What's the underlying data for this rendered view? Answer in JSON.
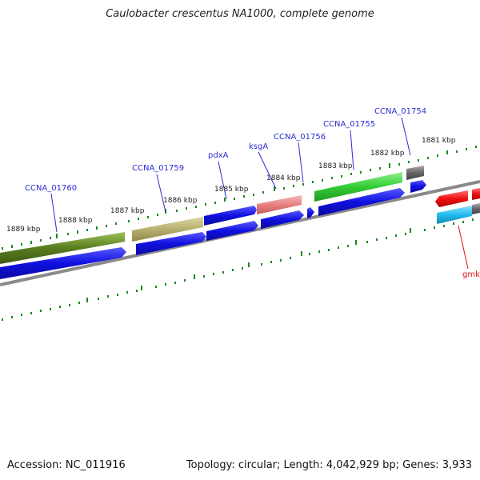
{
  "title": "Caulobacter crescentus NA1000, complete genome",
  "footer": {
    "accession": "Accession: NC_011916",
    "topology": "Topology: circular; Length: 4,042,929 bp; Genes: 3,933"
  },
  "kbp_labels": [
    "1889 kbp",
    "1888 kbp",
    "1887 kbp",
    "1886 kbp",
    "1885 kbp",
    "1884 kbp",
    "1883 kbp",
    "1882 kbp",
    "1881 kbp"
  ],
  "genes": [
    {
      "name": "CCNA_01760",
      "color": "#2b2bd6"
    },
    {
      "name": "CCNA_01759",
      "color": "#2b2bd6"
    },
    {
      "name": "pdxA",
      "color": "#2b2bd6"
    },
    {
      "name": "ksgA",
      "color": "#2b2bd6"
    },
    {
      "name": "CCNA_01756",
      "color": "#2b2bd6"
    },
    {
      "name": "CCNA_01755",
      "color": "#2b2bd6"
    },
    {
      "name": "CCNA_01754",
      "color": "#2b2bd6"
    },
    {
      "name": "gmk",
      "color": "#e01010"
    }
  ],
  "colors": {
    "cds": "#1010e0",
    "olive": "#5a7d1e",
    "khaki": "#b8b070",
    "salmon": "#e88080",
    "green": "#33cc33",
    "gray": "#666666",
    "red": "#ee1111",
    "cyan": "#22bbee",
    "axis": "#808080",
    "tick": "#228b22"
  }
}
